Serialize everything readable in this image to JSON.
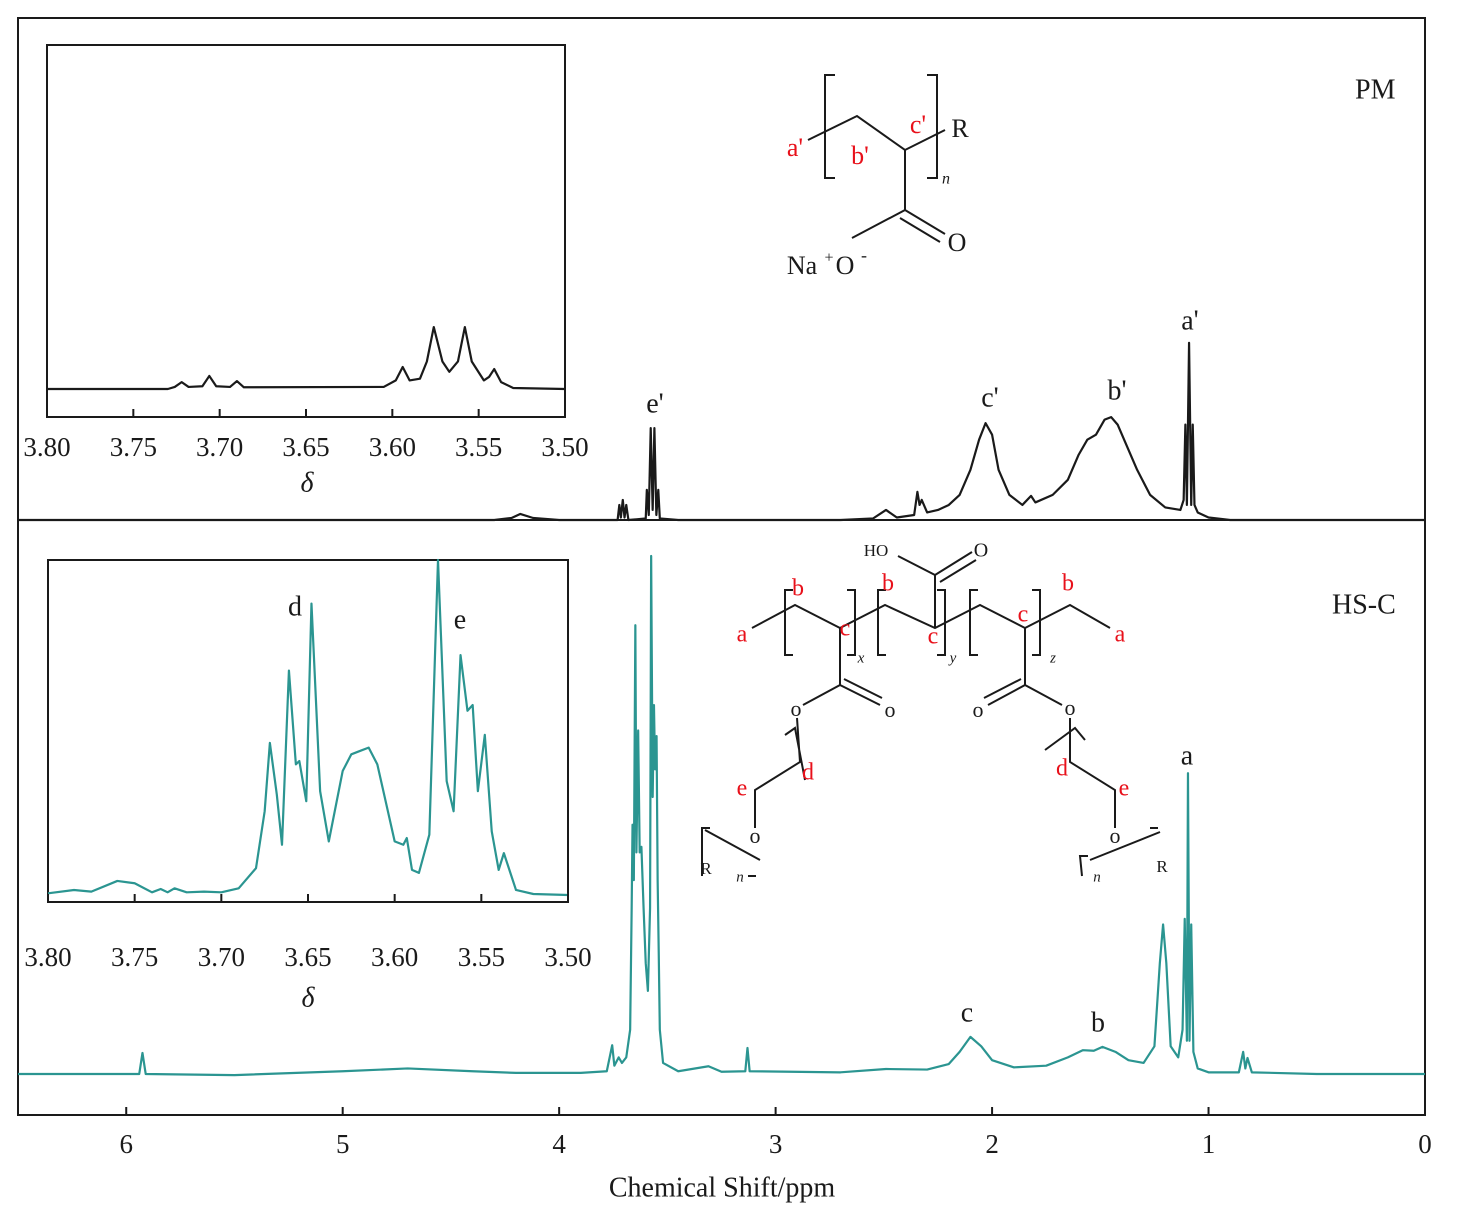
{
  "chart_data": [
    {
      "type": "line",
      "x": [
        6.5,
        4.3,
        4.22,
        4.18,
        4.12,
        4.0,
        3.73,
        3.722,
        3.715,
        3.706,
        3.698,
        3.69,
        3.68,
        3.6,
        3.595,
        3.586,
        3.577,
        3.568,
        3.56,
        3.551,
        3.542,
        3.535,
        3.45,
        2.7,
        2.55,
        2.49,
        2.44,
        2.36,
        2.345,
        2.335,
        2.325,
        2.3,
        2.25,
        2.2,
        2.15,
        2.1,
        2.06,
        2.03,
        2.0,
        1.97,
        1.92,
        1.86,
        1.82,
        1.8,
        1.72,
        1.65,
        1.6,
        1.56,
        1.52,
        1.48,
        1.45,
        1.42,
        1.38,
        1.33,
        1.27,
        1.2,
        1.13,
        1.115,
        1.107,
        1.1,
        1.09,
        1.08,
        1.073,
        1.065,
        1.05,
        1.0,
        0.9,
        0
      ],
      "series": [
        {
          "name": "PM",
          "color": "#1a1a1a",
          "values": [
            0,
            0,
            0.4,
            1.2,
            0.4,
            0,
            0,
            3,
            0.5,
            4,
            0.5,
            3,
            0,
            0.3,
            6,
            1,
            18.3,
            2,
            18.3,
            1,
            6,
            0.3,
            0,
            0,
            0.3,
            2,
            0.5,
            1,
            5.6,
            3,
            4,
            1.5,
            2,
            3,
            5,
            10,
            16,
            19.3,
            17,
            10,
            5,
            3,
            4.8,
            3.5,
            5,
            8,
            13,
            16,
            17,
            20,
            20.5,
            19,
            15,
            10,
            5,
            2.5,
            2,
            4,
            19,
            3,
            35.3,
            3,
            19,
            3,
            1.5,
            0.5,
            0,
            0
          ]
        }
      ],
      "annotations": [
        "e'",
        "c'",
        "b'",
        "a'"
      ],
      "xlim": [
        6.5,
        0
      ],
      "ylim": [
        0,
        100
      ]
    },
    {
      "type": "line",
      "x": [
        6.5,
        6.0,
        5.94,
        5.925,
        5.91,
        5.5,
        5.0,
        4.7,
        4.4,
        4.2,
        3.9,
        3.78,
        3.755,
        3.745,
        3.725,
        3.71,
        3.69,
        3.672,
        3.665,
        3.661,
        3.655,
        3.648,
        3.643,
        3.635,
        3.628,
        3.62,
        3.61,
        3.6,
        3.59,
        3.58,
        3.575,
        3.568,
        3.562,
        3.557,
        3.55,
        3.545,
        3.54,
        3.535,
        3.52,
        3.45,
        3.31,
        3.25,
        3.14,
        3.13,
        3.12,
        2.7,
        2.49,
        2.3,
        2.2,
        2.15,
        2.1,
        2.05,
        2.0,
        1.9,
        1.75,
        1.65,
        1.58,
        1.53,
        1.49,
        1.43,
        1.37,
        1.3,
        1.25,
        1.225,
        1.21,
        1.195,
        1.175,
        1.14,
        1.12,
        1.11,
        1.1,
        1.095,
        1.088,
        1.08,
        1.07,
        1.05,
        1.0,
        0.86,
        0.84,
        0.83,
        0.82,
        0.8,
        0.5,
        0
      ],
      "series": [
        {
          "name": "HS-C",
          "color": "#2b9591",
          "values": [
            0,
            0,
            0,
            3.8,
            0,
            -0.2,
            0.5,
            1,
            0.5,
            0.2,
            0.2,
            0.5,
            5.2,
            1.5,
            3,
            2,
            3,
            8,
            30,
            45,
            35,
            81,
            40,
            62,
            40,
            41,
            30,
            20,
            15,
            30,
            93.5,
            50,
            66.6,
            55,
            61,
            35,
            22,
            8,
            2,
            0.5,
            1.4,
            0.4,
            0.5,
            4.7,
            0.5,
            0.3,
            0.9,
            0.8,
            1.8,
            4,
            6.7,
            5,
            2.5,
            1.2,
            1.5,
            3,
            4.3,
            4.2,
            4.9,
            4,
            2.5,
            2,
            5,
            20,
            27,
            20,
            5,
            3,
            8,
            28,
            6,
            54.3,
            6,
            27,
            4,
            1,
            0.3,
            0.3,
            4,
            1,
            2.9,
            0.3,
            0,
            0
          ]
        }
      ],
      "annotations": [
        "c",
        "b",
        "a"
      ],
      "xlim": [
        6.5,
        0
      ],
      "ylim": [
        0,
        100
      ],
      "xticks": [
        6,
        5,
        4,
        3,
        2,
        1,
        0
      ],
      "xlabel": "Chemical Shift/ppm"
    },
    {
      "type": "line",
      "x": [
        3.8,
        3.73,
        3.726,
        3.722,
        3.718,
        3.71,
        3.706,
        3.702,
        3.694,
        3.69,
        3.686,
        3.605,
        3.598,
        3.594,
        3.59,
        3.584,
        3.58,
        3.576,
        3.571,
        3.567,
        3.562,
        3.558,
        3.554,
        3.547,
        3.544,
        3.541,
        3.537,
        3.53,
        3.5
      ],
      "series": [
        {
          "color": "#1a1a1a",
          "values": [
            0,
            0,
            0.6,
            2,
            0.6,
            0.8,
            3.8,
            0.8,
            0.6,
            2.3,
            0.5,
            0.6,
            2.5,
            6.4,
            2.5,
            3,
            8,
            18,
            8,
            5,
            8,
            18,
            8,
            2.5,
            3.5,
            5.8,
            2,
            0.3,
            0
          ]
        }
      ],
      "xlim": [
        3.8,
        3.5
      ],
      "ylim": [
        0,
        100
      ],
      "xticks": [
        {
          "value": 3.8,
          "label": "3.80"
        },
        {
          "value": 3.75,
          "label": "3.75"
        },
        {
          "value": 3.7,
          "label": "3.70"
        },
        {
          "value": 3.65,
          "label": "3.65"
        },
        {
          "value": 3.6,
          "label": "3.60"
        },
        {
          "value": 3.55,
          "label": "3.55"
        },
        {
          "value": 3.5,
          "label": "3.50"
        }
      ],
      "xlabel": "δ"
    },
    {
      "type": "line",
      "x": [
        3.8,
        3.785,
        3.775,
        3.76,
        3.75,
        3.74,
        3.735,
        3.731,
        3.727,
        3.72,
        3.71,
        3.7,
        3.69,
        3.68,
        3.675,
        3.672,
        3.668,
        3.665,
        3.661,
        3.657,
        3.655,
        3.651,
        3.648,
        3.643,
        3.638,
        3.63,
        3.625,
        3.62,
        3.615,
        3.61,
        3.6,
        3.595,
        3.593,
        3.59,
        3.586,
        3.58,
        3.575,
        3.57,
        3.566,
        3.562,
        3.558,
        3.555,
        3.552,
        3.548,
        3.544,
        3.54,
        3.537,
        3.53,
        3.52,
        3.5
      ],
      "series": [
        {
          "color": "#2b9591",
          "values": [
            0.5,
            1.5,
            1,
            4.2,
            3.5,
            0.8,
            1.8,
            0.8,
            2,
            0.8,
            1,
            0.8,
            2,
            8,
            25,
            45.4,
            30,
            15,
            67,
            39,
            40,
            28,
            87,
            31,
            16,
            37,
            42,
            43,
            44,
            39,
            16,
            15,
            17,
            7.5,
            6.6,
            18,
            100,
            34,
            25,
            71.6,
            55,
            56.7,
            31,
            47.8,
            19,
            7.5,
            12.5,
            1.5,
            0.3,
            0
          ]
        }
      ],
      "annotations": [
        "d",
        "e"
      ],
      "xlim": [
        3.8,
        3.5
      ],
      "ylim": [
        0,
        100
      ],
      "xticks": [
        {
          "value": 3.8,
          "label": "3.80"
        },
        {
          "value": 3.75,
          "label": "3.75"
        },
        {
          "value": 3.7,
          "label": "3.70"
        },
        {
          "value": 3.65,
          "label": "3.65"
        },
        {
          "value": 3.6,
          "label": "3.60"
        },
        {
          "value": 3.55,
          "label": "3.55"
        },
        {
          "value": 3.5,
          "label": "3.50"
        }
      ],
      "xlabel": "δ"
    }
  ],
  "structures": {
    "pm": {
      "labels": [
        "a'",
        "b'",
        "c'",
        "R",
        "n",
        "Na",
        "+",
        "O",
        "-",
        "O"
      ]
    },
    "hsc": {
      "labels": [
        "HO",
        "O",
        "a",
        "b",
        "c",
        "x",
        "b",
        "c",
        "y",
        "b",
        "c",
        "z",
        "a",
        "o",
        "o",
        "o",
        "o",
        "d",
        "e",
        "o",
        "R",
        "n",
        "d",
        "e",
        "o",
        "n",
        "R"
      ]
    }
  }
}
